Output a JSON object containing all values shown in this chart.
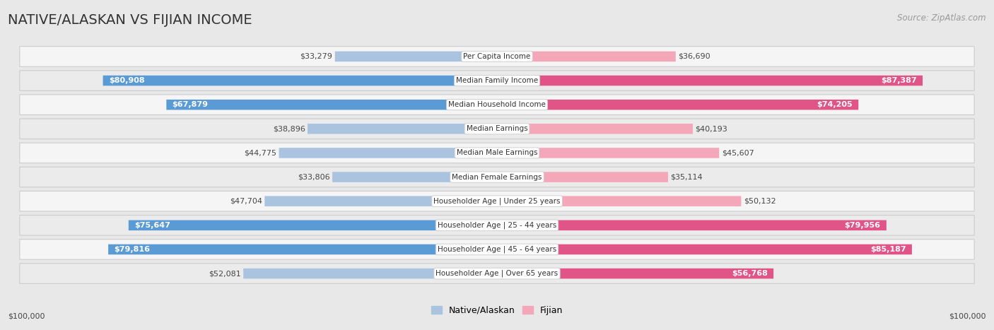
{
  "title": "NATIVE/ALASKAN VS FIJIAN INCOME",
  "source": "Source: ZipAtlas.com",
  "categories": [
    "Per Capita Income",
    "Median Family Income",
    "Median Household Income",
    "Median Earnings",
    "Median Male Earnings",
    "Median Female Earnings",
    "Householder Age | Under 25 years",
    "Householder Age | 25 - 44 years",
    "Householder Age | 45 - 64 years",
    "Householder Age | Over 65 years"
  ],
  "native_values": [
    33279,
    80908,
    67879,
    38896,
    44775,
    33806,
    47704,
    75647,
    79816,
    52081
  ],
  "fijian_values": [
    36690,
    87387,
    74205,
    40193,
    45607,
    35114,
    50132,
    79956,
    85187,
    56768
  ],
  "max_value": 100000,
  "native_color_light": "#aac4e0",
  "native_color_dark": "#5b9bd5",
  "fijian_color_light": "#f4a7b9",
  "fijian_color_dark": "#e05585",
  "dark_label_threshold": 55000,
  "bg_color": "#e8e8e8",
  "row_bg_even": "#f5f5f5",
  "row_bg_odd": "#ebebeb",
  "title_fontsize": 14,
  "source_fontsize": 8.5,
  "value_fontsize": 8,
  "category_fontsize": 7.5,
  "legend_fontsize": 9,
  "x_label_left": "$100,000",
  "x_label_right": "$100,000"
}
